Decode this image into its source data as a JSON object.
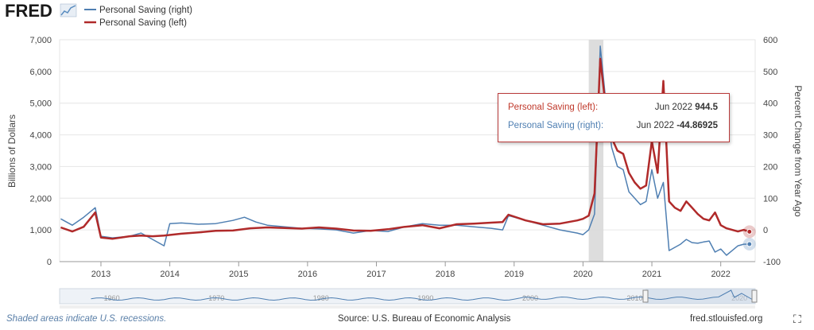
{
  "brand": {
    "logo_text": "FRED"
  },
  "legend": [
    {
      "label": "Personal Saving (right)",
      "color": "#4f7fb2"
    },
    {
      "label": "Personal Saving (left)",
      "color": "#b02a2a"
    }
  ],
  "tooltip": {
    "left_label": "Personal Saving (left):",
    "left_date": "Jun 2022",
    "left_value": "944.5",
    "right_label": "Personal Saving (right):",
    "right_date": "Jun 2022",
    "right_value": "-44.86925"
  },
  "footer": {
    "note": "Shaded areas indicate U.S. recessions.",
    "source": "Source: U.S. Bureau of Economic Analysis",
    "site": "fred.stlouisfed.org"
  },
  "navigator": {
    "labels": [
      "1960",
      "1970",
      "1980",
      "1990",
      "2000",
      "2010",
      "2020"
    ]
  },
  "chart_data": {
    "type": "line",
    "ylabel_left": "Billions of Dollars",
    "ylabel_right": "Percent Change from Year Ago",
    "ylim_left": [
      0,
      7000
    ],
    "ylim_right": [
      -100,
      600
    ],
    "left_ticks": [
      "0",
      "1,000",
      "2,000",
      "3,000",
      "4,000",
      "5,000",
      "6,000",
      "7,000"
    ],
    "right_ticks": [
      "-100",
      "0",
      "100",
      "200",
      "300",
      "400",
      "500",
      "600"
    ],
    "x_ticks": [
      "2013",
      "2014",
      "2015",
      "2016",
      "2017",
      "2018",
      "2019",
      "2020",
      "2021",
      "2022"
    ],
    "recession": {
      "start": "2020-02",
      "end": "2020-04"
    },
    "series": [
      {
        "name": "Personal Saving (left)",
        "axis": "left",
        "color": "#b02a2a",
        "points": [
          [
            "2012-06",
            1080
          ],
          [
            "2012-08",
            950
          ],
          [
            "2012-10",
            1100
          ],
          [
            "2012-12",
            1550
          ],
          [
            "2013-01",
            760
          ],
          [
            "2013-03",
            720
          ],
          [
            "2013-06",
            800
          ],
          [
            "2013-08",
            820
          ],
          [
            "2013-10",
            800
          ],
          [
            "2013-12",
            820
          ],
          [
            "2014-03",
            880
          ],
          [
            "2014-06",
            920
          ],
          [
            "2014-09",
            970
          ],
          [
            "2014-12",
            980
          ],
          [
            "2015-03",
            1050
          ],
          [
            "2015-06",
            1080
          ],
          [
            "2015-09",
            1060
          ],
          [
            "2015-12",
            1040
          ],
          [
            "2016-03",
            1080
          ],
          [
            "2016-06",
            1040
          ],
          [
            "2016-09",
            980
          ],
          [
            "2016-12",
            970
          ],
          [
            "2017-03",
            1020
          ],
          [
            "2017-06",
            1100
          ],
          [
            "2017-09",
            1150
          ],
          [
            "2017-12",
            1050
          ],
          [
            "2018-03",
            1180
          ],
          [
            "2018-06",
            1200
          ],
          [
            "2018-09",
            1230
          ],
          [
            "2018-11",
            1250
          ],
          [
            "2018-12",
            1480
          ],
          [
            "2019-03",
            1300
          ],
          [
            "2019-06",
            1180
          ],
          [
            "2019-09",
            1200
          ],
          [
            "2019-12",
            1300
          ],
          [
            "2020-01",
            1350
          ],
          [
            "2020-02",
            1450
          ],
          [
            "2020-03",
            2150
          ],
          [
            "2020-04",
            6400
          ],
          [
            "2020-05",
            4800
          ],
          [
            "2020-06",
            3900
          ],
          [
            "2020-07",
            3500
          ],
          [
            "2020-08",
            3400
          ],
          [
            "2020-09",
            2800
          ],
          [
            "2020-10",
            2500
          ],
          [
            "2020-11",
            2300
          ],
          [
            "2020-12",
            2400
          ],
          [
            "2021-01",
            3800
          ],
          [
            "2021-02",
            2800
          ],
          [
            "2021-03",
            5700
          ],
          [
            "2021-04",
            1900
          ],
          [
            "2021-05",
            1700
          ],
          [
            "2021-06",
            1600
          ],
          [
            "2021-07",
            1900
          ],
          [
            "2021-08",
            1700
          ],
          [
            "2021-09",
            1500
          ],
          [
            "2021-10",
            1350
          ],
          [
            "2021-11",
            1300
          ],
          [
            "2021-12",
            1550
          ],
          [
            "2022-01",
            1150
          ],
          [
            "2022-02",
            1050
          ],
          [
            "2022-03",
            1000
          ],
          [
            "2022-04",
            950
          ],
          [
            "2022-05",
            1000
          ],
          [
            "2022-06",
            944.5
          ]
        ]
      },
      {
        "name": "Personal Saving (right)",
        "axis": "right",
        "color": "#4f7fb2",
        "points": [
          [
            "2012-06",
            35
          ],
          [
            "2012-08",
            15
          ],
          [
            "2012-10",
            40
          ],
          [
            "2012-12",
            70
          ],
          [
            "2013-01",
            -20
          ],
          [
            "2013-03",
            -25
          ],
          [
            "2013-06",
            -20
          ],
          [
            "2013-08",
            -10
          ],
          [
            "2013-10",
            -30
          ],
          [
            "2013-12",
            -50
          ],
          [
            "2014-01",
            20
          ],
          [
            "2014-03",
            22
          ],
          [
            "2014-06",
            18
          ],
          [
            "2014-09",
            20
          ],
          [
            "2014-12",
            30
          ],
          [
            "2015-02",
            40
          ],
          [
            "2015-04",
            25
          ],
          [
            "2015-06",
            15
          ],
          [
            "2015-09",
            10
          ],
          [
            "2015-12",
            5
          ],
          [
            "2016-03",
            3
          ],
          [
            "2016-06",
            0
          ],
          [
            "2016-09",
            -10
          ],
          [
            "2016-12",
            -2
          ],
          [
            "2017-03",
            -5
          ],
          [
            "2017-06",
            10
          ],
          [
            "2017-09",
            20
          ],
          [
            "2017-12",
            15
          ],
          [
            "2018-03",
            15
          ],
          [
            "2018-06",
            10
          ],
          [
            "2018-09",
            5
          ],
          [
            "2018-11",
            0
          ],
          [
            "2018-12",
            45
          ],
          [
            "2019-03",
            30
          ],
          [
            "2019-06",
            15
          ],
          [
            "2019-09",
            0
          ],
          [
            "2019-12",
            -10
          ],
          [
            "2020-01",
            -15
          ],
          [
            "2020-02",
            0
          ],
          [
            "2020-03",
            50
          ],
          [
            "2020-04",
            580
          ],
          [
            "2020-05",
            400
          ],
          [
            "2020-06",
            260
          ],
          [
            "2020-07",
            200
          ],
          [
            "2020-08",
            190
          ],
          [
            "2020-09",
            120
          ],
          [
            "2020-10",
            100
          ],
          [
            "2020-11",
            80
          ],
          [
            "2020-12",
            90
          ],
          [
            "2021-01",
            190
          ],
          [
            "2021-02",
            100
          ],
          [
            "2021-03",
            150
          ],
          [
            "2021-04",
            -65
          ],
          [
            "2021-05",
            -55
          ],
          [
            "2021-06",
            -45
          ],
          [
            "2021-07",
            -30
          ],
          [
            "2021-08",
            -40
          ],
          [
            "2021-09",
            -42
          ],
          [
            "2021-10",
            -38
          ],
          [
            "2021-11",
            -35
          ],
          [
            "2021-12",
            -70
          ],
          [
            "2022-01",
            -60
          ],
          [
            "2022-02",
            -80
          ],
          [
            "2022-03",
            -65
          ],
          [
            "2022-04",
            -50
          ],
          [
            "2022-05",
            -45
          ],
          [
            "2022-06",
            -44.86925
          ]
        ]
      }
    ]
  }
}
